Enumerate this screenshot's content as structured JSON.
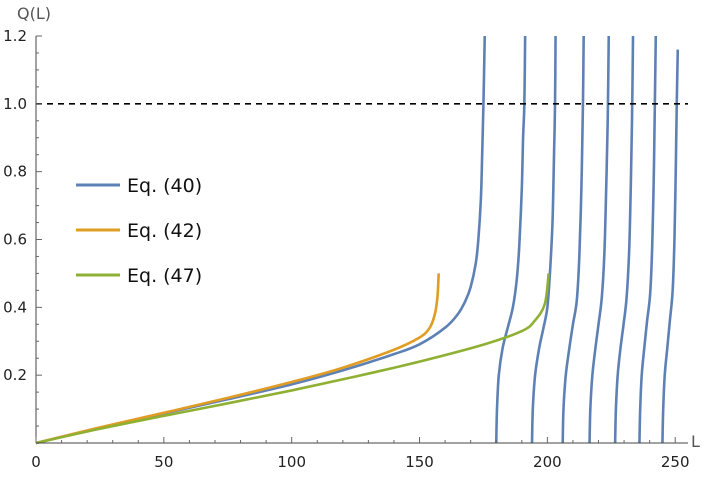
{
  "chart_data": {
    "type": "line",
    "xlabel": "L",
    "ylabel": "Q(L)",
    "xlim": [
      0,
      255
    ],
    "ylim": [
      0,
      1.2
    ],
    "x_ticks": [
      0,
      50,
      100,
      150,
      200,
      250
    ],
    "y_ticks": [
      0.2,
      0.4,
      0.6,
      0.8,
      1.0,
      1.2
    ],
    "y_tick_labels": [
      "0.2",
      "0.4",
      "0.6",
      "0.8",
      "1.0",
      "1.2"
    ],
    "grid": false,
    "legend_position": "left-middle",
    "reference_line": {
      "y": 1.0,
      "style": "dashed",
      "color": "#000000"
    },
    "series": [
      {
        "name": "Eq. (40)",
        "color": "#5E81B5",
        "branches": [
          [
            [
              0,
              0
            ],
            [
              25,
              0.045
            ],
            [
              50,
              0.087
            ],
            [
              75,
              0.129
            ],
            [
              100,
              0.173
            ],
            [
              120,
              0.214
            ],
            [
              140,
              0.262
            ],
            [
              150,
              0.291
            ],
            [
              160,
              0.34
            ],
            [
              165,
              0.38
            ],
            [
              168,
              0.42
            ],
            [
              170,
              0.46
            ],
            [
              172,
              0.53
            ],
            [
              173,
              0.6
            ],
            [
              174,
              0.72
            ],
            [
              174.5,
              0.85
            ],
            [
              175,
              1.0
            ],
            [
              175.5,
              1.2
            ]
          ],
          [
            [
              180,
              0
            ],
            [
              180.3,
              0.1
            ],
            [
              181,
              0.2
            ],
            [
              182.5,
              0.28
            ],
            [
              184.5,
              0.34
            ],
            [
              186.5,
              0.4
            ],
            [
              188,
              0.48
            ],
            [
              189,
              0.58
            ],
            [
              190,
              0.75
            ],
            [
              190.5,
              0.9
            ],
            [
              191,
              1.0
            ],
            [
              191.3,
              1.2
            ]
          ],
          [
            [
              194,
              0
            ],
            [
              194.3,
              0.1
            ],
            [
              195.2,
              0.2
            ],
            [
              196.8,
              0.28
            ],
            [
              198.5,
              0.34
            ],
            [
              200,
              0.4
            ],
            [
              201,
              0.5
            ],
            [
              202,
              0.65
            ],
            [
              202.6,
              0.85
            ],
            [
              203,
              1.0
            ],
            [
              203.2,
              1.2
            ]
          ],
          [
            [
              206,
              0
            ],
            [
              206.3,
              0.1
            ],
            [
              207.2,
              0.2
            ],
            [
              208.6,
              0.28
            ],
            [
              210,
              0.35
            ],
            [
              211.5,
              0.42
            ],
            [
              212.5,
              0.55
            ],
            [
              213.3,
              0.75
            ],
            [
              213.8,
              0.95
            ],
            [
              214,
              1.05
            ],
            [
              214.2,
              1.2
            ]
          ],
          [
            [
              216.5,
              0
            ],
            [
              216.8,
              0.1
            ],
            [
              217.6,
              0.2
            ],
            [
              218.8,
              0.28
            ],
            [
              220,
              0.35
            ],
            [
              221.3,
              0.43
            ],
            [
              222.3,
              0.56
            ],
            [
              223,
              0.75
            ],
            [
              223.6,
              0.95
            ],
            [
              224,
              1.2
            ]
          ],
          [
            [
              226.5,
              0
            ],
            [
              226.8,
              0.1
            ],
            [
              227.5,
              0.2
            ],
            [
              228.6,
              0.28
            ],
            [
              229.8,
              0.35
            ],
            [
              231,
              0.43
            ],
            [
              232,
              0.57
            ],
            [
              232.6,
              0.75
            ],
            [
              233.1,
              0.95
            ],
            [
              233.5,
              1.2
            ]
          ],
          [
            [
              236,
              0
            ],
            [
              236.3,
              0.1
            ],
            [
              236.9,
              0.2
            ],
            [
              237.9,
              0.28
            ],
            [
              239,
              0.36
            ],
            [
              240.2,
              0.44
            ],
            [
              241,
              0.58
            ],
            [
              241.6,
              0.78
            ],
            [
              242,
              0.98
            ],
            [
              242.4,
              1.2
            ]
          ],
          [
            [
              245,
              0
            ],
            [
              245.3,
              0.1
            ],
            [
              245.9,
              0.2
            ],
            [
              246.9,
              0.28
            ],
            [
              247.9,
              0.36
            ],
            [
              249,
              0.45
            ],
            [
              249.7,
              0.6
            ],
            [
              250.2,
              0.8
            ],
            [
              250.6,
              1.0
            ],
            [
              251,
              1.16
            ]
          ]
        ]
      },
      {
        "name": "Eq. (42)",
        "color": "#E19C24",
        "branches": [
          [
            [
              0,
              0
            ],
            [
              25,
              0.046
            ],
            [
              50,
              0.089
            ],
            [
              75,
              0.133
            ],
            [
              100,
              0.18
            ],
            [
              120,
              0.222
            ],
            [
              140,
              0.275
            ],
            [
              150,
              0.311
            ],
            [
              154,
              0.34
            ],
            [
              156,
              0.38
            ],
            [
              157,
              0.43
            ],
            [
              157.5,
              0.5
            ]
          ]
        ]
      },
      {
        "name": "Eq. (47)",
        "color": "#8FB032",
        "branches": [
          [
            [
              0,
              0
            ],
            [
              25,
              0.042
            ],
            [
              50,
              0.08
            ],
            [
              75,
              0.117
            ],
            [
              100,
              0.155
            ],
            [
              125,
              0.196
            ],
            [
              150,
              0.24
            ],
            [
              175,
              0.29
            ],
            [
              190,
              0.33
            ],
            [
              195,
              0.36
            ],
            [
              199,
              0.41
            ],
            [
              200.5,
              0.5
            ]
          ]
        ]
      }
    ]
  }
}
